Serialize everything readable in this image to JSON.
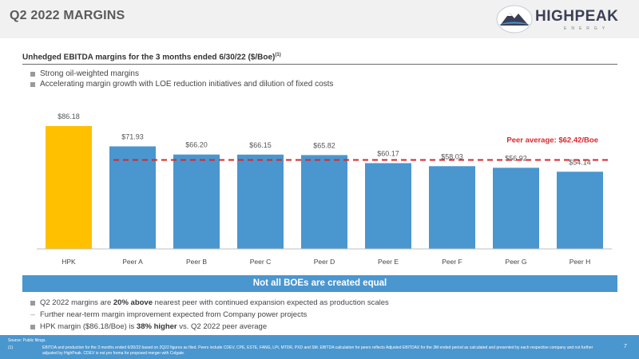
{
  "header": {
    "title": "Q2 2022 MARGINS",
    "logo_name": "HIGHPEAK",
    "logo_sub": "ENERGY"
  },
  "chart_heading": "Unhedged EBITDA margins for the 3 months ended 6/30/22 ($/Boe)",
  "chart_heading_footnote": "(1)",
  "top_bullets": [
    "Strong oil-weighted margins",
    "Accelerating margin growth with LOE reduction initiatives and dilution of fixed costs"
  ],
  "chart_data": {
    "type": "bar",
    "categories": [
      "HPK",
      "Peer A",
      "Peer B",
      "Peer C",
      "Peer D",
      "Peer E",
      "Peer F",
      "Peer G",
      "Peer H"
    ],
    "values": [
      86.18,
      71.93,
      66.2,
      66.15,
      65.82,
      60.17,
      58.03,
      56.92,
      54.14
    ],
    "data_labels": [
      "$86.18",
      "$71.93",
      "$66.20",
      "$66.15",
      "$65.82",
      "$60.17",
      "$58.03",
      "$56.92",
      "$54.14"
    ],
    "highlight_category": "HPK",
    "reference_line": {
      "value": 62.42,
      "label": "Peer average: $62.42/Boe"
    },
    "title": "",
    "xlabel": "",
    "ylabel": "",
    "ylim": [
      0,
      90
    ],
    "grid": false,
    "colors": {
      "highlight": "#FFC000",
      "bar": "#4A96CF",
      "reference": "#D9262B"
    }
  },
  "banner": "Not all BOEs are created equal",
  "bottom_bullets": [
    {
      "pre": "Q2 2022 margins are ",
      "bold": "20% above",
      "post": " nearest peer with continued expansion expected as production scales"
    },
    {
      "sub": "Further near-term margin improvement expected from Company power projects"
    },
    {
      "pre": "HPK margin ($86.18/Boe) is ",
      "bold": "38% higher",
      "post": " vs. Q2 2022 peer average"
    }
  ],
  "footer": {
    "source": "Source:   Public filings.",
    "footnote_number": "(1)",
    "footnote": "EBITDA and production for the 3 months ended 6/30/22 based on 2Q22 figures as filed. Peers include CDEV, CPE, ESTE, FANG, LPI, MTDR, PXD and SM. EBITDA calculation for peers reflects Adjusted EBITDAX for the 3M ended period as calculated and presented by each respective company and not further adjusted by HighPeak. CDEV is not pro forma for proposed merger with Colgate.",
    "page_number": "7"
  },
  "colors": {
    "accent": "#4A96CF",
    "title": "#5A5A5A"
  }
}
